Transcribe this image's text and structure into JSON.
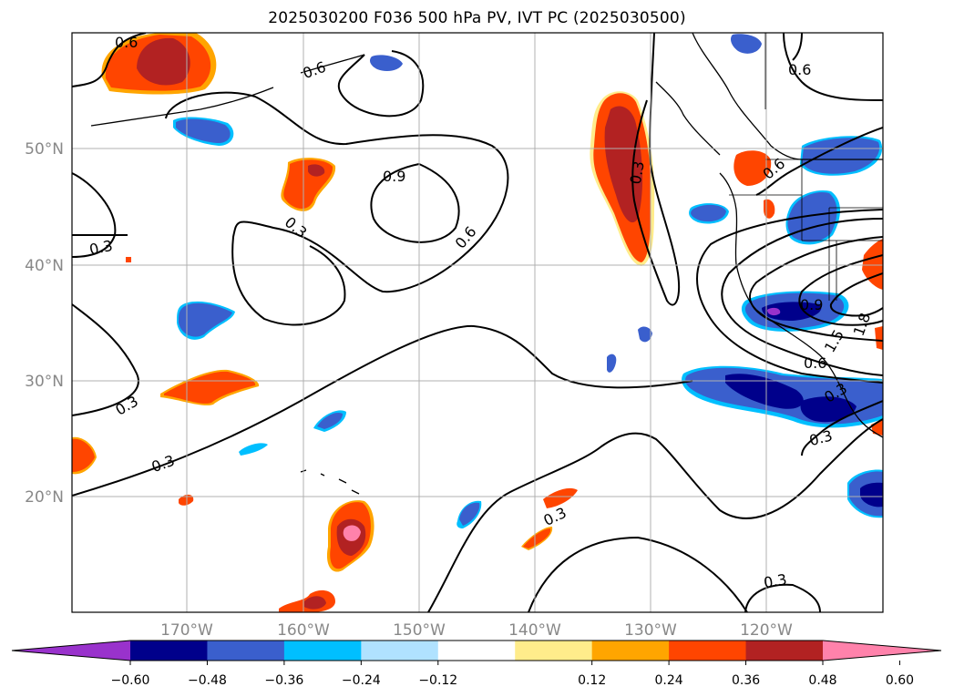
{
  "title": "2025030200 F036 500 hPa PV, IVT PC (2025030500)",
  "lat_labels": [
    "50°N",
    "40°N",
    "30°N",
    "20°N"
  ],
  "lon_labels": [
    "170°W",
    "160°W",
    "150°W",
    "140°W",
    "130°W",
    "120°W"
  ],
  "contour_labels": [
    "0.6",
    "0.6",
    "0.6",
    "0.9",
    "0.6",
    "0.3",
    "0.3",
    "0.3",
    "0.3",
    "0.6",
    "0.3",
    "0.3",
    "0.3",
    "0.9",
    "1.5",
    "1.8",
    "0.6",
    "0.3",
    "0.3"
  ],
  "colorbar": {
    "ticks": [
      "−0.60",
      "−0.48",
      "−0.36",
      "−0.24",
      "−0.12",
      "0.12",
      "0.24",
      "0.36",
      "0.48",
      "0.60"
    ],
    "colors": [
      "#9932cc",
      "#00008b",
      "#3a5fcd",
      "#00bfff",
      "#b0e2ff",
      "#ffffff",
      "#ffec8b",
      "#ffa500",
      "#ff4500",
      "#b22222",
      "#ff82ab"
    ]
  }
}
